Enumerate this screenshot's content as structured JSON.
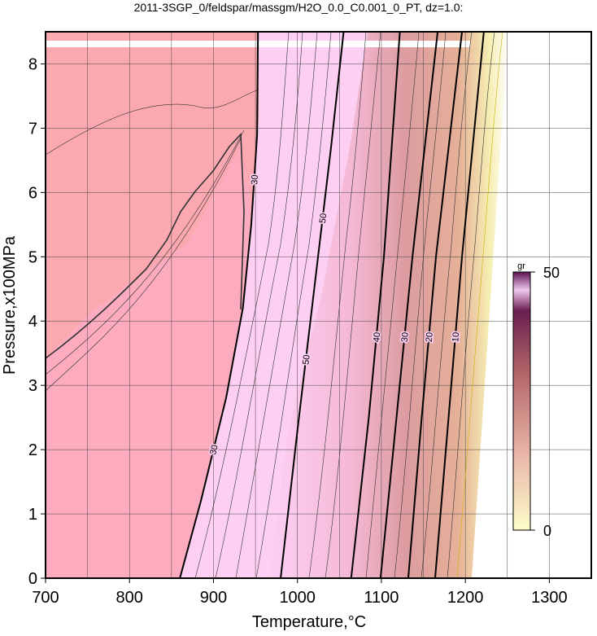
{
  "chart_data": {
    "type": "contour",
    "title": "2011-3SGP_0/feldspar/massgm/H2O_0.0_C0.001_0_PT, dz=1.0:",
    "x_label": "Temperature,°C",
    "y_label": "Pressure,x100MPa",
    "xlim": [
      700,
      1350
    ],
    "ylim": [
      0,
      8.5
    ],
    "xticks": [
      700,
      800,
      900,
      1000,
      1100,
      1200,
      1300
    ],
    "yticks": [
      0,
      1,
      2,
      3,
      4,
      5,
      6,
      7,
      8
    ],
    "xgrid": [
      750,
      800,
      850,
      900,
      950,
      1000,
      1050,
      1100,
      1150,
      1200,
      1250,
      1300
    ],
    "grid": true,
    "series": [
      {
        "name": "50",
        "color": "#000000",
        "x": [
          980,
          1000,
          1020,
          1040,
          1055
        ],
        "y": [
          0,
          2.3,
          4.5,
          6.7,
          8.5
        ]
      },
      {
        "name": "40",
        "color": "#000000",
        "x": [
          1064,
          1085,
          1103,
          1122
        ],
        "y": [
          0,
          2.5,
          5.0,
          8.5
        ]
      },
      {
        "name": "30",
        "color": "#000000",
        "x": [
          1099,
          1118,
          1137,
          1167
        ],
        "y": [
          0,
          2.5,
          5.0,
          8.5
        ]
      },
      {
        "name": "20",
        "color": "#000000",
        "x": [
          1132,
          1148,
          1165,
          1196
        ],
        "y": [
          0,
          2.5,
          5.0,
          8.5
        ]
      },
      {
        "name": "10",
        "color": "#000000",
        "x": [
          1164,
          1180,
          1196,
          1222
        ],
        "y": [
          0,
          2.5,
          5.0,
          8.5
        ]
      },
      {
        "name": "30",
        "color": "#000000",
        "x": [
          860,
          885,
          915,
          935,
          945,
          952,
          953
        ],
        "y": [
          0,
          1.2,
          2.8,
          4.2,
          5.5,
          6.9,
          8.5
        ]
      }
    ],
    "colorbar": {
      "label": "gr",
      "lim": [
        0,
        50
      ],
      "ticks": [
        0,
        50
      ]
    }
  }
}
